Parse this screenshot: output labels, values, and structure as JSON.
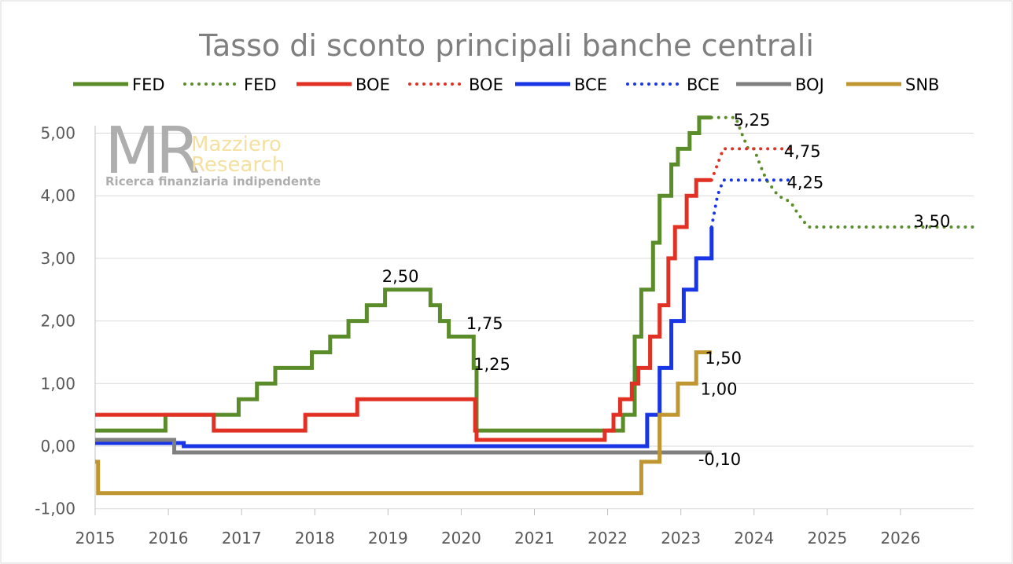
{
  "chart_data": {
    "type": "line",
    "title": "Tasso di sconto principali banche centrali",
    "xlabel": "",
    "ylabel": "",
    "xlim": [
      2015,
      2027
    ],
    "ylim": [
      -1,
      5.5
    ],
    "x_ticks": [
      "2015",
      "2016",
      "2017",
      "2018",
      "2019",
      "2020",
      "2021",
      "2022",
      "2023",
      "2024",
      "2025",
      "2026"
    ],
    "y_ticks": [
      "-1,00",
      "0,00",
      "1,00",
      "2,00",
      "3,00",
      "4,00",
      "5,00"
    ],
    "grid": "horizontal",
    "legend_position": "top",
    "series": [
      {
        "name": "FED",
        "color": "#5b8c2a",
        "style": "solid",
        "step": true,
        "x": [
          2015.0,
          2015.96,
          2016.96,
          2017.21,
          2017.46,
          2017.96,
          2018.21,
          2018.46,
          2018.71,
          2018.96,
          2019.58,
          2019.71,
          2019.83,
          2020.17,
          2020.21,
          2022.21,
          2022.37,
          2022.46,
          2022.62,
          2022.71,
          2022.87,
          2022.96,
          2023.12,
          2023.25,
          2023.42
        ],
        "values": [
          0.25,
          0.5,
          0.75,
          1.0,
          1.25,
          1.5,
          1.75,
          2.0,
          2.25,
          2.5,
          2.25,
          2.0,
          1.75,
          1.25,
          0.25,
          0.5,
          1.75,
          2.5,
          3.25,
          4.0,
          4.5,
          4.75,
          5.0,
          5.25,
          5.25
        ]
      },
      {
        "name": "FED",
        "color": "#5b8c2a",
        "style": "dotted",
        "step": false,
        "x": [
          2023.42,
          2023.75,
          2023.83,
          2023.92,
          2024.0,
          2024.08,
          2024.17,
          2024.33,
          2024.5,
          2024.58,
          2024.67,
          2024.75,
          2025.0,
          2025.5,
          2026.0,
          2026.5,
          2027.0
        ],
        "values": [
          5.25,
          5.25,
          5.0,
          4.75,
          4.75,
          4.5,
          4.25,
          4.0,
          3.9,
          3.75,
          3.6,
          3.5,
          3.5,
          3.5,
          3.5,
          3.5,
          3.5
        ]
      },
      {
        "name": "BOE",
        "color": "#e03124",
        "style": "solid",
        "step": true,
        "x": [
          2015.0,
          2016.62,
          2017.87,
          2018.58,
          2020.19,
          2020.21,
          2021.96,
          2022.08,
          2022.17,
          2022.33,
          2022.42,
          2022.58,
          2022.71,
          2022.83,
          2022.92,
          2023.08,
          2023.21,
          2023.42
        ],
        "values": [
          0.5,
          0.25,
          0.5,
          0.75,
          0.25,
          0.1,
          0.25,
          0.5,
          0.75,
          1.0,
          1.25,
          1.75,
          2.25,
          3.0,
          3.5,
          4.0,
          4.25,
          4.25
        ]
      },
      {
        "name": "BOE",
        "color": "#e03124",
        "style": "dotted",
        "step": false,
        "x": [
          2023.42,
          2023.5,
          2023.58,
          2023.67,
          2024.0,
          2024.5
        ],
        "values": [
          4.25,
          4.5,
          4.75,
          4.75,
          4.75,
          4.75
        ]
      },
      {
        "name": "BCE",
        "color": "#1936e6",
        "style": "solid",
        "step": true,
        "x": [
          2015.0,
          2016.21,
          2022.54,
          2022.71,
          2022.87,
          2023.04,
          2023.21,
          2023.42
        ],
        "values": [
          0.05,
          0.0,
          0.5,
          1.25,
          2.0,
          2.5,
          3.0,
          3.5
        ]
      },
      {
        "name": "BCE",
        "color": "#1936e6",
        "style": "dotted",
        "step": false,
        "x": [
          2023.42,
          2023.5,
          2023.58,
          2024.0,
          2024.5
        ],
        "values": [
          3.5,
          4.0,
          4.25,
          4.25,
          4.25
        ]
      },
      {
        "name": "BOJ",
        "color": "#7f7f7f",
        "style": "solid",
        "step": true,
        "x": [
          2015.0,
          2016.08,
          2023.42
        ],
        "values": [
          0.1,
          -0.1,
          -0.1
        ]
      },
      {
        "name": "SNB",
        "color": "#bf9630",
        "style": "solid",
        "step": true,
        "x": [
          2015.0,
          2015.04,
          2022.46,
          2022.71,
          2022.96,
          2023.21,
          2023.42
        ],
        "values": [
          -0.25,
          -0.75,
          -0.25,
          0.5,
          1.0,
          1.5,
          1.5
        ]
      }
    ],
    "annotations": [
      {
        "text": "5,25",
        "x": 2023.97,
        "y": 5.22
      },
      {
        "text": "4,75",
        "x": 2024.66,
        "y": 4.72
      },
      {
        "text": "4,25",
        "x": 2024.7,
        "y": 4.22
      },
      {
        "text": "3,50",
        "x": 2026.43,
        "y": 3.6
      },
      {
        "text": "2,50",
        "x": 2019.17,
        "y": 2.72
      },
      {
        "text": "1,75",
        "x": 2020.32,
        "y": 1.97
      },
      {
        "text": "1,25",
        "x": 2020.42,
        "y": 1.32
      },
      {
        "text": "1,50",
        "x": 2023.58,
        "y": 1.42
      },
      {
        "text": "1,00",
        "x": 2023.52,
        "y": 0.92
      },
      {
        "text": "-0,10",
        "x": 2023.53,
        "y": -0.2
      }
    ]
  },
  "watermark": {
    "monogram": "MR",
    "name_line1": "Mazziero",
    "name_line2": "Research",
    "tagline": "Ricerca finanziaria indipendente"
  }
}
